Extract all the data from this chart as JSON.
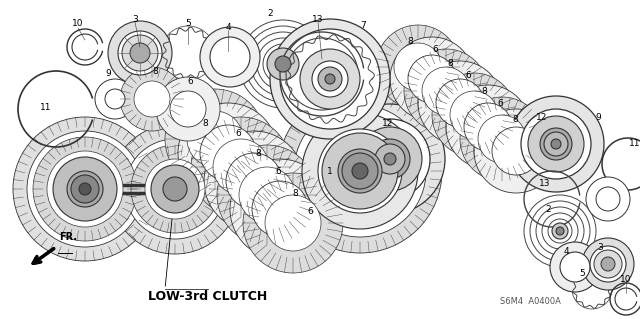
{
  "title": "LOW-3rd CLUTCH",
  "part_code": "S6M4  A0400A",
  "bg_color": "#ffffff",
  "lc": "#222222",
  "figsize": [
    6.4,
    3.19
  ],
  "dpi": 100,
  "xlim": [
    0,
    640
  ],
  "ylim": [
    0,
    319
  ]
}
